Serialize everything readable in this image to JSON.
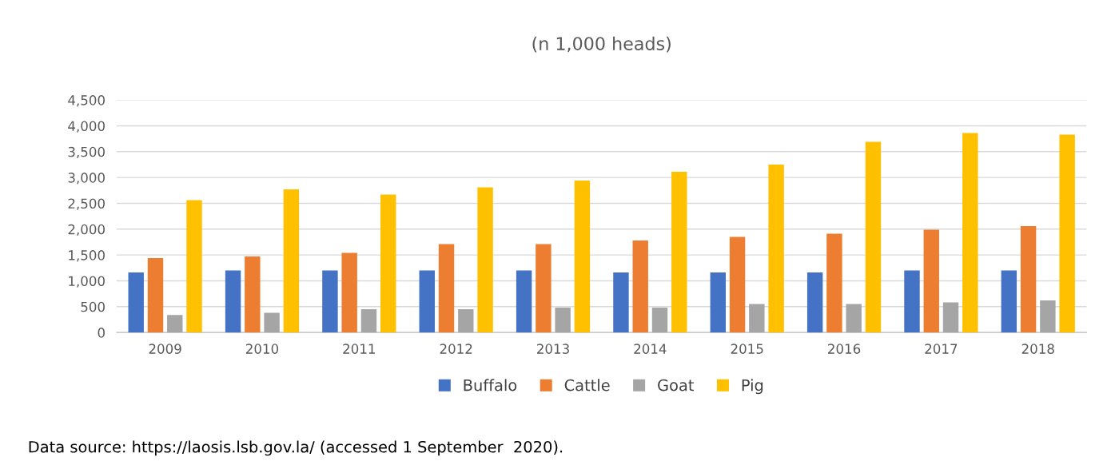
{
  "chart_data": {
    "type": "bar",
    "title": "(n 1,000 heads)",
    "categories": [
      "2009",
      "2010",
      "2011",
      "2012",
      "2013",
      "2014",
      "2015",
      "2016",
      "2017",
      "2018"
    ],
    "series": [
      {
        "name": "Buffalo",
        "color": "#4472c4",
        "values": [
          1160,
          1200,
          1200,
          1200,
          1200,
          1160,
          1160,
          1160,
          1200,
          1200
        ]
      },
      {
        "name": "Cattle",
        "color": "#ed7d31",
        "values": [
          1440,
          1470,
          1540,
          1710,
          1710,
          1780,
          1850,
          1910,
          1990,
          2060
        ]
      },
      {
        "name": "Goat",
        "color": "#a5a5a5",
        "values": [
          340,
          380,
          450,
          450,
          480,
          480,
          550,
          550,
          580,
          620
        ]
      },
      {
        "name": "Pig",
        "color": "#ffc000",
        "values": [
          2560,
          2770,
          2670,
          2810,
          2940,
          3110,
          3250,
          3690,
          3860,
          3830
        ]
      }
    ],
    "ylim": [
      0,
      4500
    ],
    "yticks": [
      {
        "value": 0,
        "label": "0"
      },
      {
        "value": 500,
        "label": "500"
      },
      {
        "value": 1000,
        "label": "1,000"
      },
      {
        "value": 1500,
        "label": "1,500"
      },
      {
        "value": 2000,
        "label": "2,000"
      },
      {
        "value": 2500,
        "label": "2,500"
      },
      {
        "value": 3000,
        "label": "3,000"
      },
      {
        "value": 3500,
        "label": "3,500"
      },
      {
        "value": 4000,
        "label": "4,000"
      },
      {
        "value": 4500,
        "label": "4,500"
      }
    ],
    "grid": "y",
    "legend": "bottom",
    "annotations": [
      "Data source: https://laosis.lsb.gov.la/ (accessed 1 September  2020)."
    ]
  }
}
